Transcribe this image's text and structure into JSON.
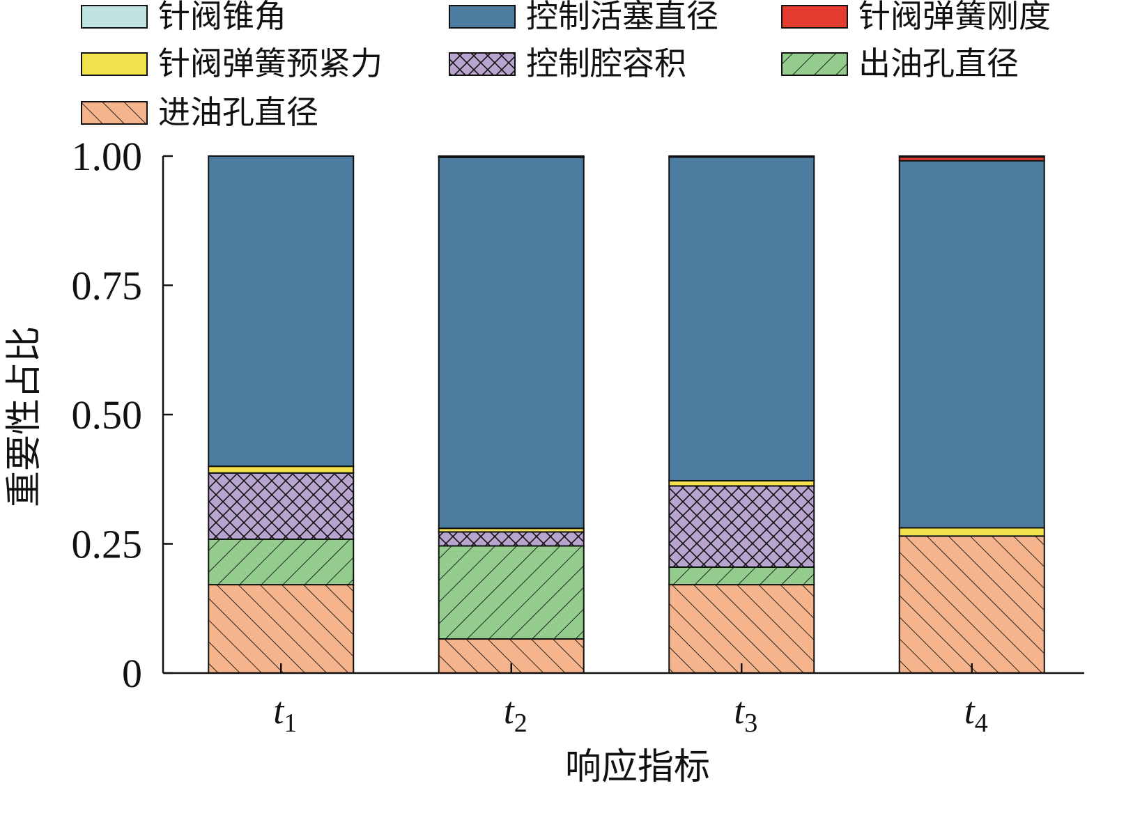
{
  "chart_data": {
    "type": "bar",
    "stacked": true,
    "categories": [
      {
        "base": "t",
        "sub": "1"
      },
      {
        "base": "t",
        "sub": "2"
      },
      {
        "base": "t",
        "sub": "3"
      },
      {
        "base": "t",
        "sub": "4"
      }
    ],
    "xlabel": "响应指标",
    "ylabel": "重要性占比",
    "ylim": [
      0,
      1
    ],
    "yticks": [
      {
        "value": 0,
        "label": "0"
      },
      {
        "value": 0.25,
        "label": "0.25"
      },
      {
        "value": 0.5,
        "label": "0.50"
      },
      {
        "value": 0.75,
        "label": "0.75"
      },
      {
        "value": 1.0,
        "label": "1.00"
      }
    ],
    "legend_position": "top",
    "series": [
      {
        "name": "进油孔直径",
        "color": "#f5b48c",
        "pattern": "diagonal-forward",
        "values": [
          0.171,
          0.066,
          0.171,
          0.265
        ]
      },
      {
        "name": "出油孔直径",
        "color": "#93cc8d",
        "pattern": "diagonal-backward",
        "values": [
          0.088,
          0.18,
          0.034,
          0.0
        ]
      },
      {
        "name": "控制腔容积",
        "color": "#b9a4cf",
        "pattern": "crosshatch",
        "values": [
          0.128,
          0.027,
          0.157,
          0.0
        ]
      },
      {
        "name": "针阀弹簧预紧力",
        "color": "#f3e24b",
        "pattern": "none",
        "values": [
          0.013,
          0.007,
          0.01,
          0.016
        ]
      },
      {
        "name": "控制活塞直径",
        "color": "#4c7da0",
        "pattern": "none",
        "values": [
          0.6,
          0.718,
          0.626,
          0.71
        ]
      },
      {
        "name": "针阀弹簧刚度",
        "color": "#e43d30",
        "pattern": "none",
        "values": [
          0.0,
          0.001,
          0.0,
          0.007
        ]
      },
      {
        "name": "针阀锥角",
        "color": "#bfe3e1",
        "pattern": "none",
        "values": [
          0.0,
          0.001,
          0.002,
          0.002
        ]
      }
    ],
    "legend_order": [
      "针阀锥角",
      "控制活塞直径",
      "针阀弹簧刚度",
      "针阀弹簧预紧力",
      "控制腔容积",
      "出油孔直径",
      "进油孔直径"
    ]
  }
}
